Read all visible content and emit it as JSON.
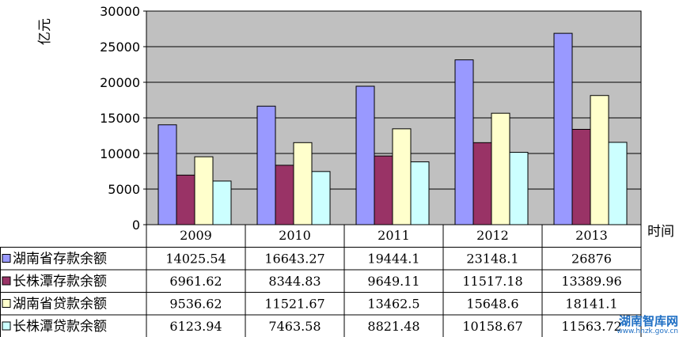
{
  "chart_data": {
    "type": "bar",
    "title": "",
    "ylabel": "亿元",
    "xlabel": "时间",
    "ylim": [
      0,
      30000
    ],
    "yticks": [
      0,
      5000,
      10000,
      15000,
      20000,
      25000,
      30000
    ],
    "grid": true,
    "categories": [
      "2009",
      "2010",
      "2011",
      "2012",
      "2013"
    ],
    "series": [
      {
        "name": "湖南省存款余额",
        "color": "#9999ff",
        "values": [
          14025.54,
          16643.27,
          19444.1,
          23148.1,
          26876
        ],
        "labels": [
          "14025.54",
          "16643.27",
          "19444.1",
          "23148.1",
          "26876"
        ]
      },
      {
        "name": "长株潭存款余额",
        "color": "#993366",
        "values": [
          6961.62,
          8344.83,
          9649.11,
          11517.18,
          13389.96
        ],
        "labels": [
          "6961.62",
          "8344.83",
          "9649.11",
          "11517.18",
          "13389.96"
        ]
      },
      {
        "name": "湖南省贷款余额",
        "color": "#ffffcc",
        "values": [
          9536.62,
          11521.67,
          13462.5,
          15648.6,
          18141.1
        ],
        "labels": [
          "9536.62",
          "11521.67",
          "13462.5",
          "15648.6",
          "18141.1"
        ]
      },
      {
        "name": "长株潭贷款余额",
        "color": "#ccffff",
        "values": [
          6123.94,
          7463.58,
          8821.48,
          10158.67,
          11563.72
        ],
        "labels": [
          "6123.94",
          "7463.58",
          "8821.48",
          "10158.67",
          "11563.72"
        ]
      }
    ]
  },
  "watermark": {
    "name": "湖南智库网",
    "url": "www.hnzk.gov.cn"
  }
}
